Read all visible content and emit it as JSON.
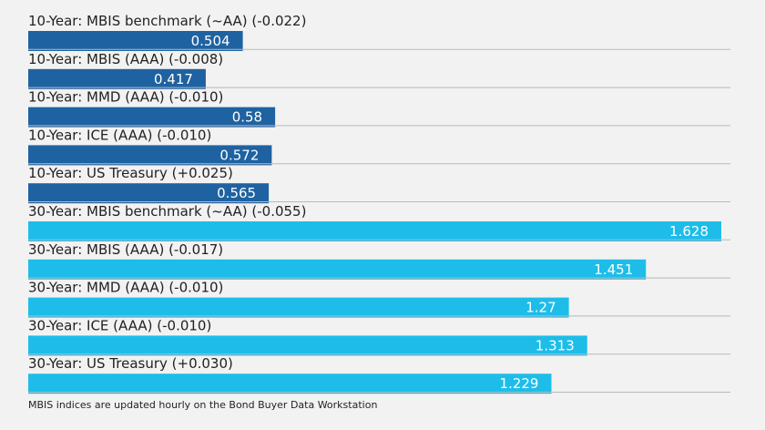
{
  "chart_data": {
    "type": "bar",
    "orientation": "horizontal",
    "categories": [
      "10-Year: MBIS benchmark (~AA) (-0.022)",
      "10-Year: MBIS (AAA) (-0.008)",
      "10-Year: MMD (AAA) (-0.010)",
      "10-Year: ICE (AAA) (-0.010)",
      "10-Year: US Treasury (+0.025)",
      "30-Year: MBIS benchmark (~AA) (-0.055)",
      "30-Year: MBIS (AAA) (-0.017)",
      "30-Year: MMD (AAA) (-0.010)",
      "30-Year: ICE (AAA) (-0.010)",
      "30-Year: US Treasury (+0.030)"
    ],
    "values": [
      0.504,
      0.417,
      0.58,
      0.572,
      0.565,
      1.628,
      1.451,
      1.27,
      1.313,
      1.229
    ],
    "value_labels": [
      "0.504",
      "0.417",
      "0.58",
      "0.572",
      "0.565",
      "1.628",
      "1.451",
      "1.27",
      "1.313",
      "1.229"
    ],
    "colors": {
      "10-Year": "#1f62a1",
      "30-Year": "#1ebde9"
    },
    "bar_groups": [
      "10-Year",
      "10-Year",
      "10-Year",
      "10-Year",
      "10-Year",
      "30-Year",
      "30-Year",
      "30-Year",
      "30-Year",
      "30-Year"
    ],
    "xlim": [
      0,
      1.628
    ],
    "grid": false,
    "title": "",
    "xlabel": "",
    "ylabel": ""
  },
  "footnote": "MBIS indices are updated hourly on the Bond Buyer Data Workstation"
}
